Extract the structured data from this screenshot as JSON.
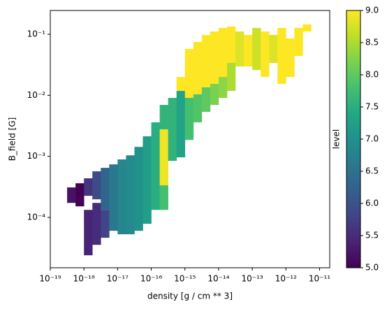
{
  "chart_data": {
    "type": "heatmap",
    "xlabel": "density [g / cm ** 3]",
    "ylabel": "B_field [G]",
    "colorbar_label": "level",
    "xscale": "log",
    "yscale": "log",
    "xlim": [
      1e-19,
      2e-11
    ],
    "ylim": [
      1.5e-05,
      0.245
    ],
    "xticks": [
      {
        "value": 1e-19,
        "label": "10⁻¹⁹"
      },
      {
        "value": 1e-18,
        "label": "10⁻¹⁸"
      },
      {
        "value": 1e-17,
        "label": "10⁻¹⁷"
      },
      {
        "value": 1e-16,
        "label": "10⁻¹⁶"
      },
      {
        "value": 1e-15,
        "label": "10⁻¹⁵"
      },
      {
        "value": 1e-14,
        "label": "10⁻¹⁴"
      },
      {
        "value": 1e-13,
        "label": "10⁻¹³"
      },
      {
        "value": 1e-12,
        "label": "10⁻¹²"
      },
      {
        "value": 1e-11,
        "label": "10⁻¹¹"
      }
    ],
    "yticks": [
      {
        "value": 0.0001,
        "label": "10⁻⁴"
      },
      {
        "value": 0.001,
        "label": "10⁻³"
      },
      {
        "value": 0.01,
        "label": "10⁻²"
      },
      {
        "value": 0.1,
        "label": "10⁻¹"
      }
    ],
    "clim": [
      5,
      9
    ],
    "cticks": [
      {
        "value": 5,
        "label": "5.0"
      },
      5.5,
      {
        "value": 6,
        "label": "6.0"
      },
      6.5,
      {
        "value": 7,
        "label": "7.0"
      },
      7.5,
      {
        "value": 8,
        "label": "8.0"
      },
      8.5,
      {
        "value": 9,
        "label": "9.0"
      }
    ],
    "colormap": [
      "#440154",
      "#482475",
      "#414487",
      "#355f8d",
      "#2a788e",
      "#21918c",
      "#22a884",
      "#44bf70",
      "#7ad151",
      "#bddf26",
      "#fde725"
    ],
    "cells": [
      {
        "x": [
          3.16e-19,
          5.62e-19
        ],
        "y": [
          0.000173,
          0.00031
        ],
        "level": 5.2
      },
      {
        "x": [
          5.62e-19,
          1e-18
        ],
        "y": [
          0.000152,
          0.000363
        ],
        "level": 5.0
      },
      {
        "x": [
          1e-18,
          1.78e-18
        ],
        "y": [
          0.000226,
          0.000437
        ],
        "level": 5.6
      },
      {
        "x": [
          1e-18,
          1.78e-18
        ],
        "y": [
          2.4e-05,
          0.000133
        ],
        "level": 5.4
      },
      {
        "x": [
          1.78e-18,
          3.16e-18
        ],
        "y": [
          0.000198,
          0.000569
        ],
        "level": 5.9
      },
      {
        "x": [
          1.78e-18,
          3.16e-18
        ],
        "y": [
          3.56e-05,
          0.000173
        ],
        "level": 5.5
      },
      {
        "x": [
          3.16e-18,
          5.62e-18
        ],
        "y": [
          0.000133,
          0.000649
        ],
        "level": 6.3
      },
      {
        "x": [
          3.16e-18,
          5.62e-18
        ],
        "y": [
          4.65e-05,
          0.000133
        ],
        "level": 5.8
      },
      {
        "x": [
          5.62e-18,
          1e-17
        ],
        "y": [
          6.04e-05,
          0.00074
        ],
        "level": 6.6
      },
      {
        "x": [
          1e-17,
          1.78e-17
        ],
        "y": [
          5.3e-05,
          0.000891
        ],
        "level": 6.8
      },
      {
        "x": [
          1.78e-17,
          3.16e-17
        ],
        "y": [
          5.3e-05,
          0.00104
        ],
        "level": 6.9
      },
      {
        "x": [
          3.16e-17,
          5.62e-17
        ],
        "y": [
          6.04e-05,
          0.00143
        ],
        "level": 7.0
      },
      {
        "x": [
          5.62e-17,
          1e-16
        ],
        "y": [
          7.87e-05,
          0.00213
        ],
        "level": 7.2
      },
      {
        "x": [
          1e-16,
          1.78e-16
        ],
        "y": [
          0.000133,
          0.00361
        ],
        "level": 7.5
      },
      {
        "x": [
          1.78e-16,
          3.16e-16
        ],
        "y": [
          0.00277,
          0.00697
        ],
        "level": 7.6
      },
      {
        "x": [
          1.78e-16,
          3.16e-16
        ],
        "y": [
          0.000336,
          0.00277
        ],
        "level": 8.9
      },
      {
        "x": [
          1.78e-16,
          3.16e-16
        ],
        "y": [
          0.000133,
          0.000336
        ],
        "level": 7.8
      },
      {
        "x": [
          3.16e-16,
          5.62e-16
        ],
        "y": [
          0.000845,
          0.00908
        ],
        "level": 7.6
      },
      {
        "x": [
          5.62e-16,
          1e-15
        ],
        "y": [
          0.0118,
          0.02
        ],
        "level": 9.0
      },
      {
        "x": [
          5.62e-16,
          1e-15
        ],
        "y": [
          0.000964,
          0.0118
        ],
        "level": 7.3
      },
      {
        "x": [
          1e-15,
          1.78e-15
        ],
        "y": [
          0.00908,
          0.0575
        ],
        "level": 9.0
      },
      {
        "x": [
          1e-15,
          1.78e-15
        ],
        "y": [
          0.00186,
          0.00908
        ],
        "level": 7.8
      },
      {
        "x": [
          1.78e-15,
          3.16e-15
        ],
        "y": [
          0.0104,
          0.0748
        ],
        "level": 9.0
      },
      {
        "x": [
          1.78e-15,
          3.16e-15
        ],
        "y": [
          0.00361,
          0.0104
        ],
        "level": 7.9
      },
      {
        "x": [
          3.16e-15,
          5.62e-15
        ],
        "y": [
          0.0135,
          0.0975
        ],
        "level": 9.0
      },
      {
        "x": [
          3.16e-15,
          5.62e-15
        ],
        "y": [
          0.00536,
          0.0135
        ],
        "level": 8.0
      },
      {
        "x": [
          5.62e-15,
          1e-14
        ],
        "y": [
          0.0154,
          0.111
        ],
        "level": 9.0
      },
      {
        "x": [
          5.62e-15,
          1e-14
        ],
        "y": [
          0.00697,
          0.0154
        ],
        "level": 8.2
      },
      {
        "x": [
          1e-14,
          1.78e-14
        ],
        "y": [
          0.02,
          0.127
        ],
        "level": 9.0
      },
      {
        "x": [
          1e-14,
          1.78e-14
        ],
        "y": [
          0.00908,
          0.02
        ],
        "level": 8.3
      },
      {
        "x": [
          1.78e-14,
          3.16e-14
        ],
        "y": [
          0.0339,
          0.134
        ],
        "level": 9.0
      },
      {
        "x": [
          1.78e-14,
          3.16e-14
        ],
        "y": [
          0.0118,
          0.0339
        ],
        "level": 8.5
      },
      {
        "x": [
          3.16e-14,
          5.62e-14
        ],
        "y": [
          0.0297,
          0.111
        ],
        "level": 8.8
      },
      {
        "x": [
          5.62e-14,
          1e-13
        ],
        "y": [
          0.0297,
          0.0975
        ],
        "level": 9.0
      },
      {
        "x": [
          1e-13,
          1.78e-13
        ],
        "y": [
          0.026,
          0.127
        ],
        "level": 8.7
      },
      {
        "x": [
          1.78e-13,
          3.16e-13
        ],
        "y": [
          0.02,
          0.111
        ],
        "level": 9.0
      },
      {
        "x": [
          3.16e-13,
          5.62e-13
        ],
        "y": [
          0.0339,
          0.0975
        ],
        "level": 8.8
      },
      {
        "x": [
          5.62e-13,
          1e-12
        ],
        "y": [
          0.0154,
          0.127
        ],
        "level": 9.0
      },
      {
        "x": [
          1e-12,
          1.78e-12
        ],
        "y": [
          0.02,
          0.0853
        ],
        "level": 9.0
      },
      {
        "x": [
          1.78e-12,
          3.16e-12
        ],
        "y": [
          0.0442,
          0.127
        ],
        "level": 9.0
      },
      {
        "x": [
          3.16e-12,
          5.62e-12
        ],
        "y": [
          0.111,
          0.145
        ],
        "level": 9.0
      }
    ]
  }
}
